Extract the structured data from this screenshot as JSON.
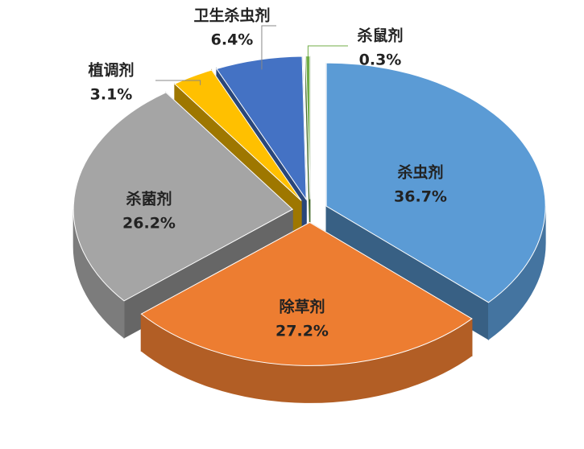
{
  "chart_data": {
    "type": "pie",
    "categories": [
      "杀虫剂",
      "除草剂",
      "杀菌剂",
      "植调剂",
      "卫生杀虫剂",
      "杀鼠剂"
    ],
    "values": [
      36.7,
      27.2,
      26.2,
      3.1,
      6.4,
      0.3
    ],
    "value_labels": [
      "36.7%",
      "27.2%",
      "26.2%",
      "3.1%",
      "6.4%",
      "0.3%"
    ],
    "colors": [
      "#5b9bd5",
      "#ed7d31",
      "#a5a5a5",
      "#ffc000",
      "#4472c4",
      "#70ad47"
    ]
  }
}
